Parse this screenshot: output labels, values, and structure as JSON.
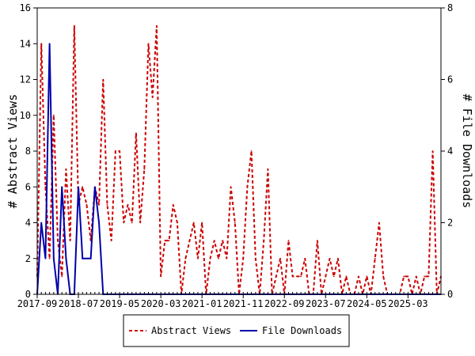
{
  "colors": {
    "views": "#cc0000",
    "downloads": "#0000aa",
    "axis": "#000000",
    "background": "#ffffff"
  },
  "chart_data": {
    "type": "line",
    "title": "",
    "xlabel": "",
    "ylabel": "# Abstract Views",
    "y2label": "# File Downloads",
    "x_tick_labels": [
      "2017-09",
      "2018-07",
      "2019-05",
      "2020-03",
      "2021-01",
      "2021-11",
      "2022-09",
      "2023-07",
      "2024-05",
      "2025-03"
    ],
    "x_months_range": [
      0,
      98
    ],
    "ylim": [
      0,
      16
    ],
    "y_ticks": [
      0,
      2,
      4,
      6,
      8,
      10,
      12,
      14,
      16
    ],
    "y2lim": [
      0,
      8
    ],
    "y2_ticks": [
      0,
      2,
      4,
      6,
      8
    ],
    "grid": false,
    "legend": "bottom",
    "series": [
      {
        "name": "Abstract Views",
        "axis": "left",
        "style": "dashed",
        "values": [
          1,
          14,
          6,
          2,
          10,
          3,
          1,
          7,
          3,
          15,
          5,
          6,
          5,
          3,
          6,
          5,
          12,
          5,
          3,
          8,
          8,
          4,
          5,
          4,
          9,
          4,
          7,
          14,
          11,
          15,
          1,
          3,
          3,
          5,
          4,
          0,
          2,
          3,
          4,
          2,
          4,
          0,
          2,
          3,
          2,
          3,
          2,
          6,
          4,
          0,
          2,
          6,
          8,
          2,
          0,
          3,
          7,
          0,
          1,
          2,
          0,
          3,
          1,
          1,
          1,
          2,
          0,
          0,
          3,
          0,
          1,
          2,
          1,
          2,
          0,
          1,
          0,
          0,
          1,
          0,
          1,
          0,
          2,
          4,
          1,
          0,
          0,
          0,
          0,
          1,
          1,
          0,
          1,
          0,
          1,
          1,
          8,
          0,
          1
        ]
      },
      {
        "name": "File Downloads",
        "axis": "right",
        "style": "solid",
        "values": [
          0,
          2,
          1,
          7,
          1,
          0,
          3,
          1,
          0,
          0,
          3,
          1,
          1,
          1,
          3,
          2,
          0,
          0,
          0,
          0,
          0,
          0,
          0,
          0,
          0,
          0,
          0,
          0,
          0,
          0,
          0,
          0,
          0,
          0,
          0,
          0,
          0,
          0,
          0,
          0,
          0,
          0,
          0,
          0,
          0,
          0,
          0,
          0,
          0,
          0,
          0,
          0,
          0,
          0,
          0,
          0,
          0,
          0,
          0,
          0,
          0,
          0,
          0,
          0,
          0,
          0,
          0,
          0,
          0,
          0,
          0,
          0,
          0,
          0,
          0,
          0,
          0,
          0,
          0,
          0,
          0,
          0,
          0,
          0,
          0,
          0,
          0,
          0,
          0,
          0,
          0,
          0,
          0,
          0,
          0,
          0,
          0,
          0,
          0
        ]
      }
    ]
  }
}
